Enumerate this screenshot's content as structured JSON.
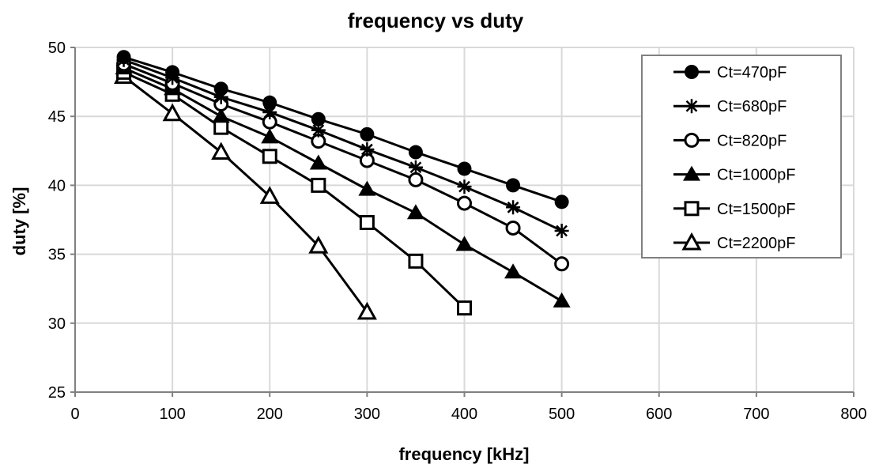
{
  "chart_data": {
    "type": "line",
    "title": "frequency vs duty",
    "xlabel": "frequency [kHz]",
    "ylabel": "duty [%]",
    "xlim": [
      0,
      800
    ],
    "ylim": [
      25,
      50
    ],
    "xticks": [
      0,
      100,
      200,
      300,
      400,
      500,
      600,
      700,
      800
    ],
    "yticks": [
      25,
      30,
      35,
      40,
      45,
      50
    ],
    "grid": true,
    "legend_position": "top-right",
    "line_color": "#000000",
    "grid_color": "#d9d9d9",
    "series": [
      {
        "name": "Ct=470pF",
        "marker": "filled-circle",
        "x": [
          50,
          100,
          150,
          200,
          250,
          300,
          350,
          400,
          450,
          500
        ],
        "y": [
          49.3,
          48.2,
          47.0,
          46.0,
          44.8,
          43.7,
          42.4,
          41.2,
          40.0,
          38.8
        ]
      },
      {
        "name": "Ct=680pF",
        "marker": "asterisk",
        "x": [
          50,
          100,
          150,
          200,
          250,
          300,
          350,
          400,
          450,
          500
        ],
        "y": [
          49.1,
          47.8,
          46.4,
          45.3,
          44.0,
          42.6,
          41.3,
          39.9,
          38.4,
          36.7
        ]
      },
      {
        "name": "Ct=820pF",
        "marker": "open-circle",
        "x": [
          50,
          100,
          150,
          200,
          250,
          300,
          350,
          400,
          450,
          500
        ],
        "y": [
          48.8,
          47.4,
          45.9,
          44.6,
          43.2,
          41.8,
          40.4,
          38.7,
          36.9,
          34.3
        ]
      },
      {
        "name": "Ct=1000pF",
        "marker": "filled-triangle",
        "x": [
          50,
          100,
          150,
          200,
          250,
          300,
          350,
          400,
          450,
          500
        ],
        "y": [
          48.5,
          47.0,
          45.0,
          43.5,
          41.6,
          39.7,
          38.0,
          35.7,
          33.7,
          31.6
        ]
      },
      {
        "name": "Ct=1500pF",
        "marker": "open-square",
        "x": [
          50,
          100,
          150,
          200,
          250,
          300,
          350,
          400
        ],
        "y": [
          48.2,
          46.6,
          44.2,
          42.1,
          40.0,
          37.3,
          34.5,
          31.1
        ]
      },
      {
        "name": "Ct=2200pF",
        "marker": "open-triangle",
        "x": [
          50,
          100,
          150,
          200,
          250,
          300
        ],
        "y": [
          47.9,
          45.2,
          42.4,
          39.2,
          35.6,
          30.8
        ]
      }
    ]
  }
}
